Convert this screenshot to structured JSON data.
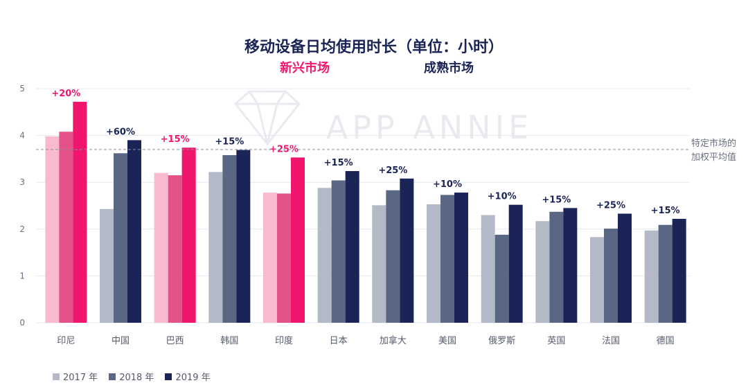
{
  "header": {
    "title": "移动设备日均使用时长（单位：小时）",
    "emerging_label": "新兴市场",
    "mature_label": "成熟市场"
  },
  "watermark": "APP ANNIE",
  "average_line_label": [
    "特定市场的",
    "加权平均值"
  ],
  "colors": {
    "emerging": [
      "#f9b9cf",
      "#e5528a",
      "#f0166e"
    ],
    "mature": [
      "#b4b9c8",
      "#5a6784",
      "#1a2456"
    ],
    "legend": [
      "#b4b9c8",
      "#5a6784",
      "#1a2456"
    ],
    "pct_emerging": "#f0166e",
    "pct_mature": "#1a2456",
    "grid": "#e6e7ec",
    "avg_line": "#8a8f9c",
    "axis_text": "#6b7080"
  },
  "chart_data": {
    "type": "bar",
    "title": "移动设备日均使用时长（单位：小时）",
    "categories": [
      "印尼",
      "中国",
      "巴西",
      "韩国",
      "印度",
      "日本",
      "加拿大",
      "美国",
      "俄罗斯",
      "英国",
      "法国",
      "德国"
    ],
    "market_type": [
      "emerging",
      "mature",
      "emerging",
      "mature",
      "emerging",
      "mature",
      "mature",
      "mature",
      "mature",
      "mature",
      "mature",
      "mature"
    ],
    "series": [
      {
        "name": "2017 年",
        "values": [
          3.98,
          2.43,
          3.2,
          3.22,
          2.78,
          2.88,
          2.51,
          2.53,
          2.3,
          2.17,
          1.83,
          1.97
        ]
      },
      {
        "name": "2018 年",
        "values": [
          4.08,
          3.62,
          3.15,
          3.58,
          2.76,
          3.04,
          2.83,
          2.73,
          1.88,
          2.37,
          2.01,
          2.09
        ]
      },
      {
        "name": "2019 年",
        "values": [
          4.72,
          3.9,
          3.74,
          3.69,
          3.53,
          3.24,
          3.08,
          2.78,
          2.52,
          2.45,
          2.33,
          2.22
        ]
      }
    ],
    "growth_labels": [
      "+20%",
      "+60%",
      "+15%",
      "+15%",
      "+25%",
      "+15%",
      "+25%",
      "+10%",
      "+10%",
      "+15%",
      "+25%",
      "+15%"
    ],
    "yticks": [
      0,
      1,
      2,
      3,
      4,
      5
    ],
    "ylim": [
      0,
      5
    ],
    "average_line": 3.7,
    "grid": true,
    "legend_position": "bottom-left"
  }
}
